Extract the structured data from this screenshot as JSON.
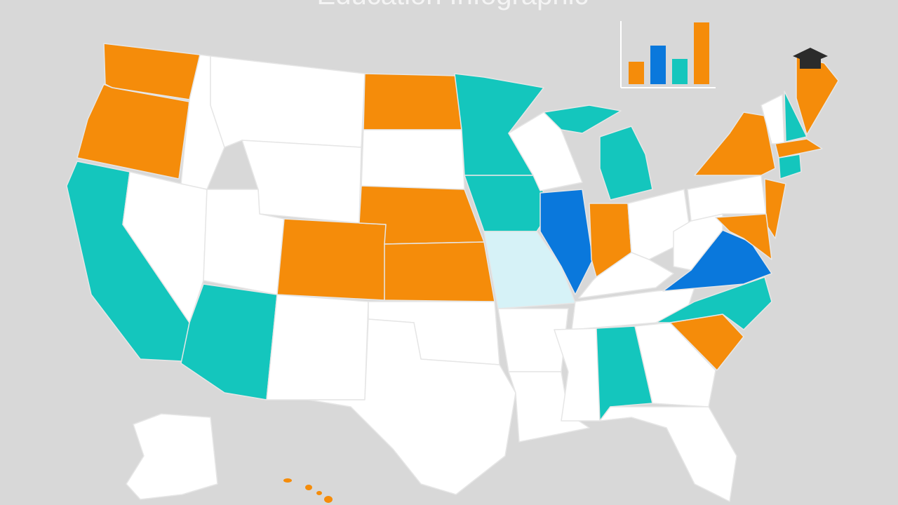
{
  "header": {
    "title": "Education Infographic"
  }
}
